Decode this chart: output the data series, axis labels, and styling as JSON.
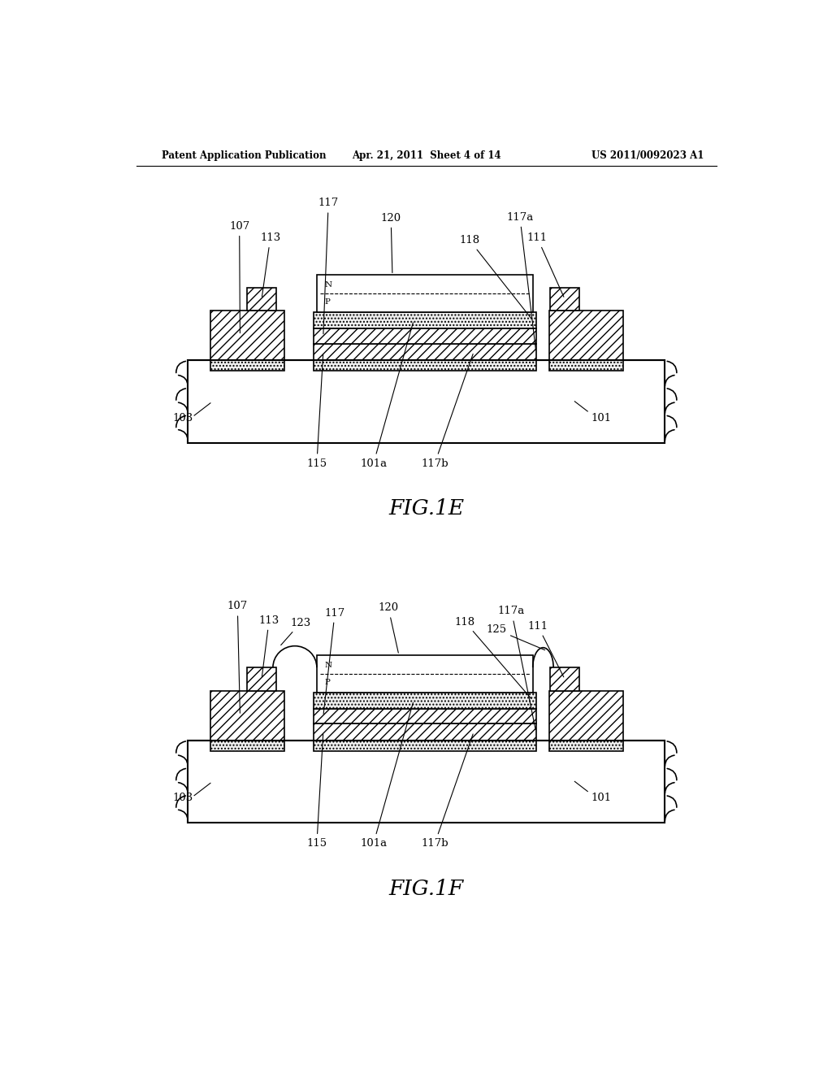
{
  "header_left": "Patent Application Publication",
  "header_center": "Apr. 21, 2011  Sheet 4 of 14",
  "header_right": "US 2011/0092023 A1",
  "fig1e_label": "FIG.1E",
  "fig1f_label": "FIG.1F",
  "bg_color": "#ffffff"
}
